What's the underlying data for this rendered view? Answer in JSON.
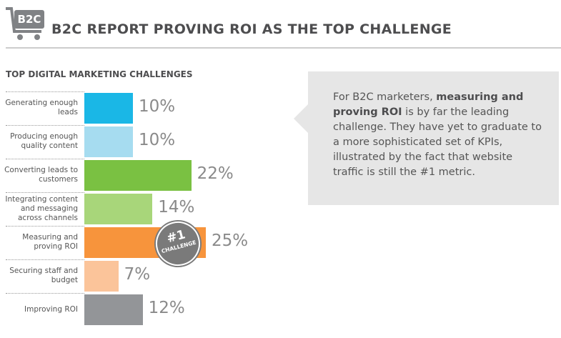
{
  "header": {
    "icon_label": "B2C",
    "title": "B2C REPORT PROVING ROI AS THE TOP CHALLENGE"
  },
  "chart_data": {
    "type": "bar",
    "orientation": "horizontal",
    "title": "TOP DIGITAL MARKETING CHALLENGES",
    "categories": [
      "Generating enough leads",
      "Producing enough quality content",
      "Converting leads to customers",
      "Integrating content and messaging across channels",
      "Measuring and proving ROI",
      "Securing staff and budget",
      "Improving ROI"
    ],
    "values": [
      10,
      10,
      22,
      14,
      25,
      7,
      12
    ],
    "value_labels": [
      "10%",
      "10%",
      "22%",
      "14%",
      "25%",
      "7%",
      "12%"
    ],
    "colors": [
      "#1ab7e6",
      "#a6dcf0",
      "#7ac142",
      "#a8d67a",
      "#f7943c",
      "#fbc49a",
      "#939598"
    ],
    "badge": {
      "title": "#1",
      "label": "CHALLENGE",
      "category_index": 4
    }
  },
  "callout": {
    "parts": [
      "For B2C marketers, ",
      "measuring and proving ROI",
      " is by far the leading challenge. They have yet to graduate to a more sophisticated set of KPIs, illustrated by the fact that website traffic is still the #1 metric."
    ]
  }
}
